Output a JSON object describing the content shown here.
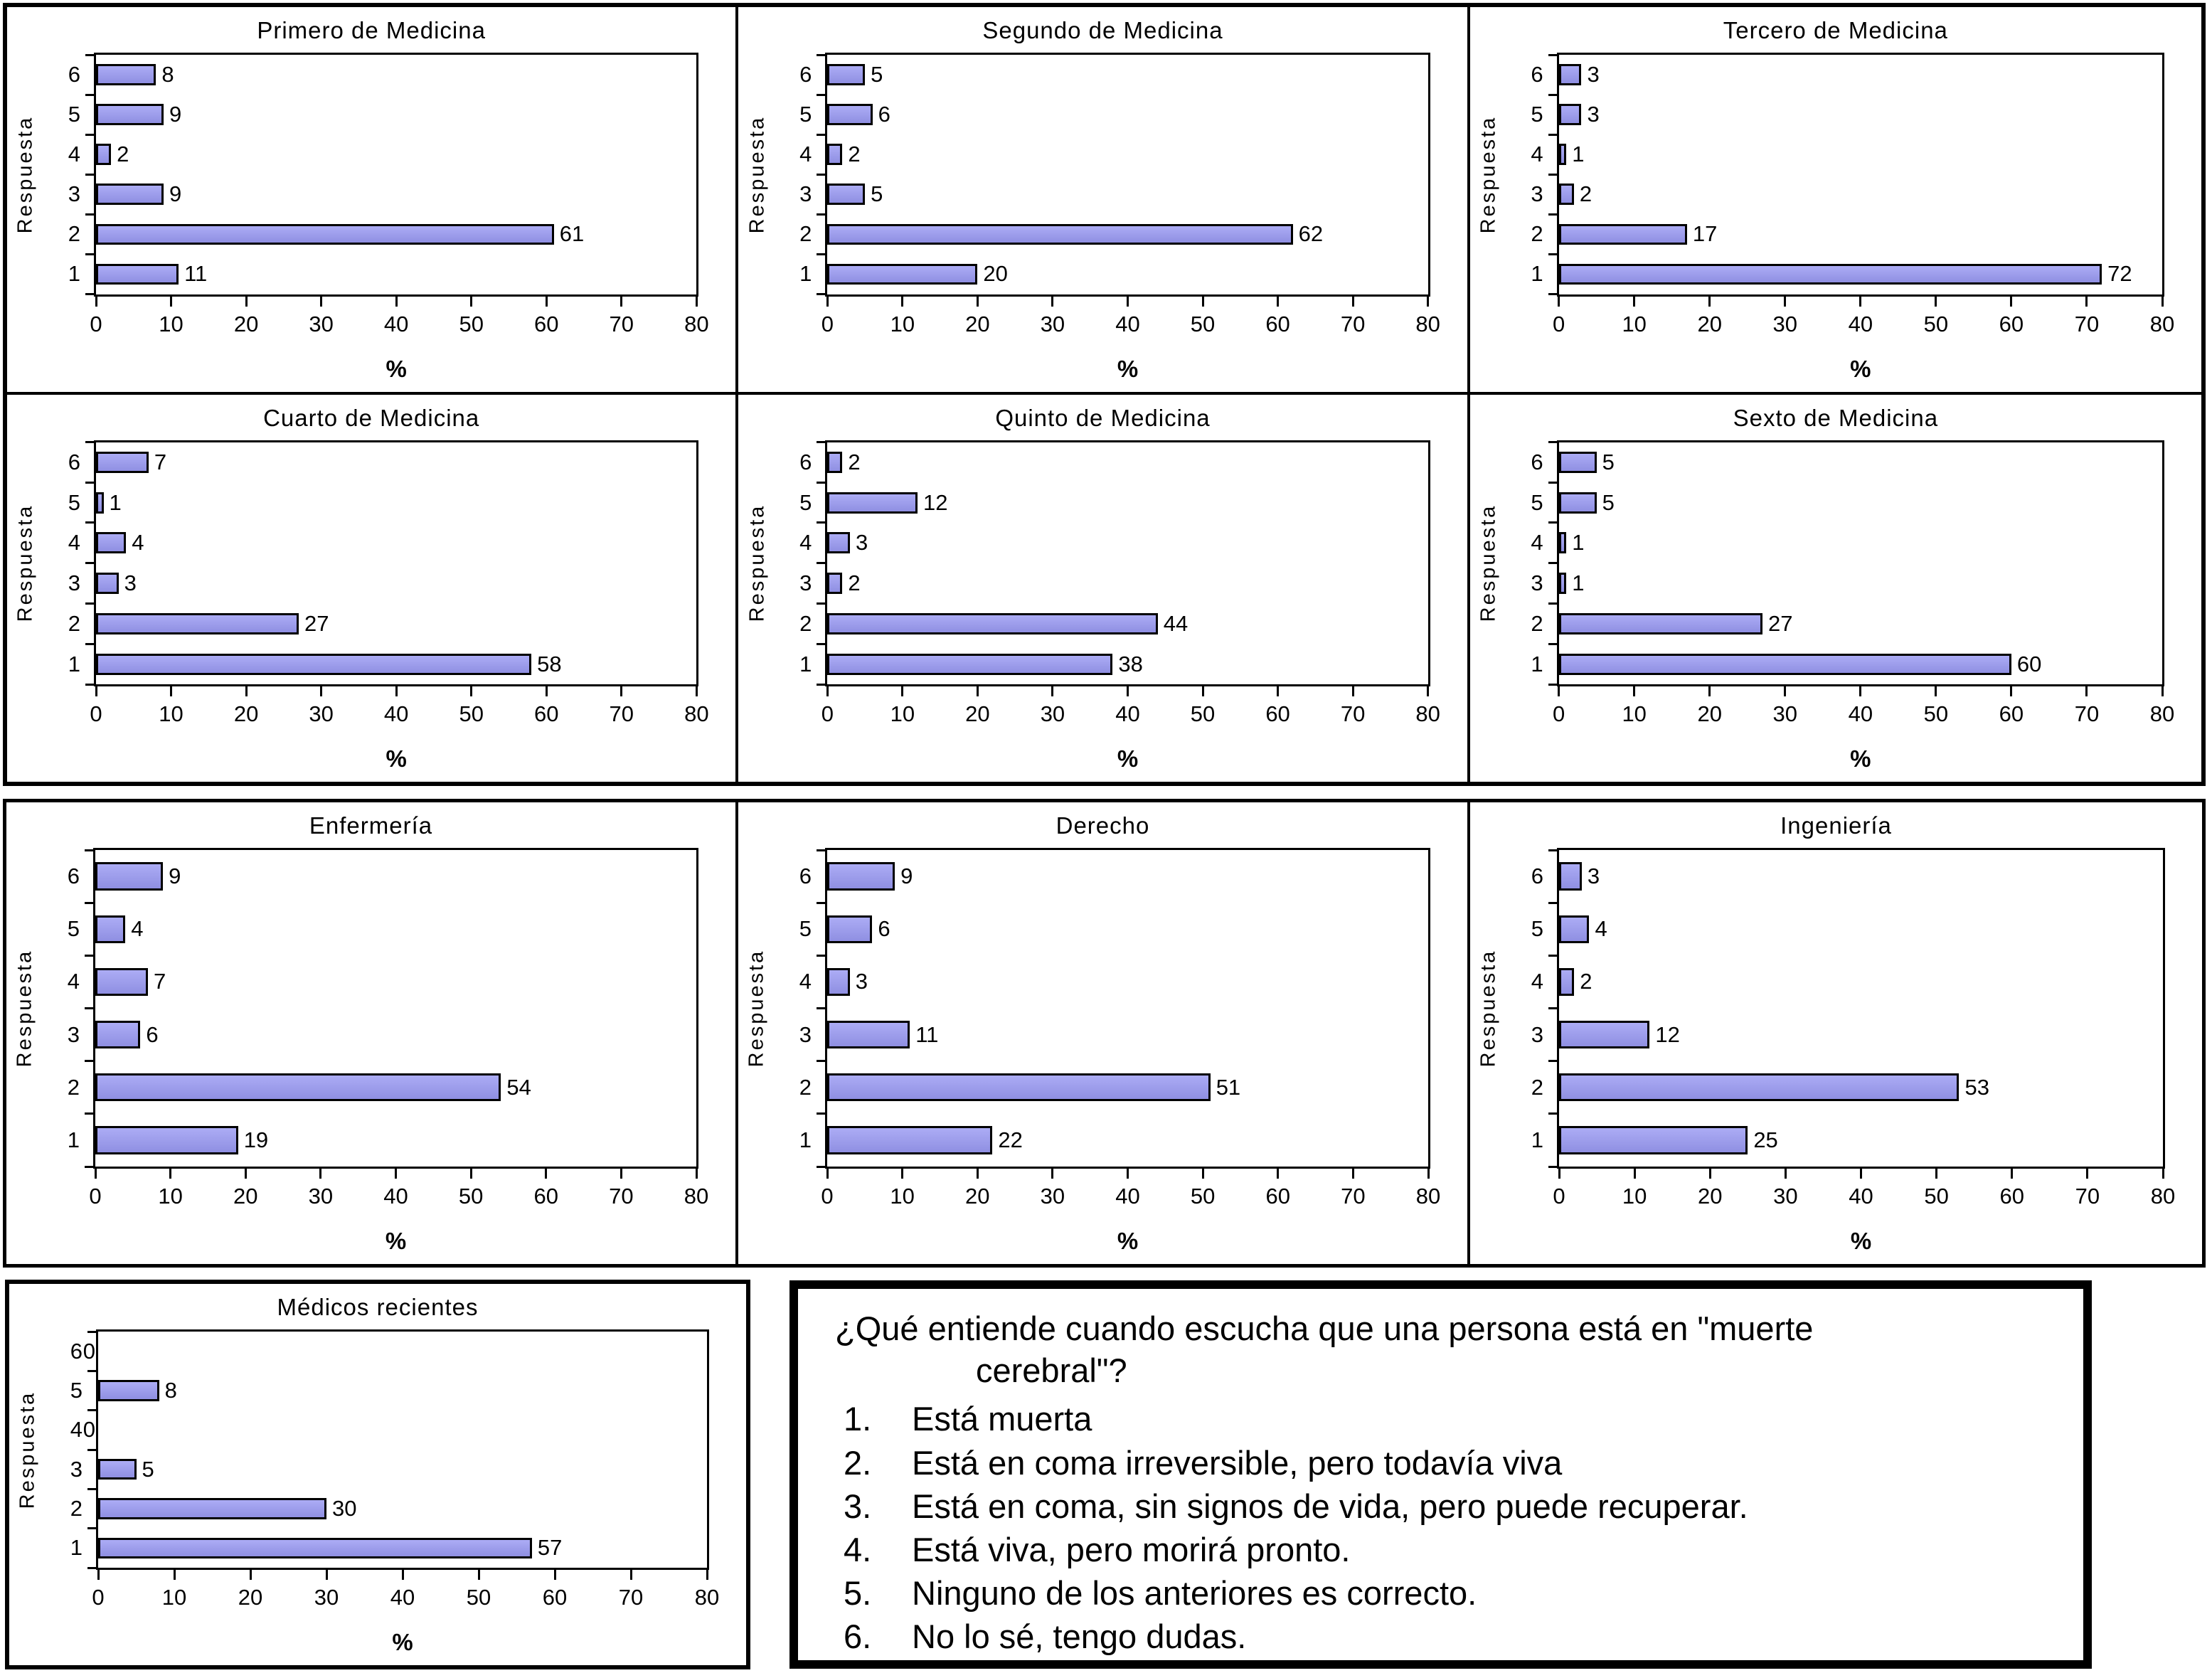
{
  "axis": {
    "xlabel": "%",
    "ylabel": "Respuesta",
    "categories": [
      "6",
      "5",
      "4",
      "3",
      "2",
      "1"
    ],
    "xticks": [
      0,
      10,
      20,
      30,
      40,
      50,
      60,
      70,
      80
    ],
    "xmax": 80
  },
  "chart_data": {
    "type": "bar",
    "orientation": "horizontal",
    "categories": [
      "6",
      "5",
      "4",
      "3",
      "2",
      "1"
    ],
    "xlabel": "%",
    "ylabel": "Respuesta",
    "xlim": [
      0,
      80
    ],
    "xticks": [
      0,
      10,
      20,
      30,
      40,
      50,
      60,
      70,
      80
    ],
    "grid": false,
    "legend": "none",
    "charts": [
      {
        "title": "Primero de Medicina",
        "values": [
          8,
          9,
          2,
          9,
          61,
          11
        ]
      },
      {
        "title": "Segundo de Medicina",
        "values": [
          5,
          6,
          2,
          5,
          62,
          20
        ]
      },
      {
        "title": "Tercero de Medicina",
        "values": [
          3,
          3,
          1,
          2,
          17,
          72
        ]
      },
      {
        "title": "Cuarto de Medicina",
        "values": [
          7,
          1,
          4,
          3,
          27,
          58
        ]
      },
      {
        "title": "Quinto de Medicina",
        "values": [
          2,
          12,
          3,
          2,
          44,
          38
        ]
      },
      {
        "title": "Sexto de Medicina",
        "values": [
          5,
          5,
          1,
          1,
          27,
          60
        ]
      },
      {
        "title": "Enfermería",
        "values": [
          9,
          4,
          7,
          6,
          54,
          19
        ]
      },
      {
        "title": "Derecho",
        "values": [
          9,
          6,
          3,
          11,
          51,
          22
        ]
      },
      {
        "title": "Ingeniería",
        "values": [
          3,
          4,
          2,
          12,
          53,
          25
        ]
      },
      {
        "title": "Médicos recientes",
        "values": [
          0,
          8,
          0,
          5,
          30,
          57
        ]
      }
    ]
  },
  "question_box": {
    "intro_line1": "¿Qué entiende cuando escucha que una persona está en \"muerte",
    "intro_line2": "cerebral\"?",
    "items": [
      {
        "num": "1.",
        "text": "Está muerta"
      },
      {
        "num": "2.",
        "text": "Está en coma irreversible, pero todavía viva"
      },
      {
        "num": "3.",
        "text": "Está en coma, sin signos de vida, pero puede recuperar."
      },
      {
        "num": "4.",
        "text": "Está viva, pero morirá pronto."
      },
      {
        "num": "5.",
        "text": "Ninguno de los anteriores es correcto."
      },
      {
        "num": "6.",
        "text": "No lo sé, tengo dudas."
      }
    ]
  },
  "colors": {
    "bar_fill": "#9A9AEF",
    "bar_border": "#000000",
    "frame": "#000000",
    "background": "#FFFFFF"
  }
}
